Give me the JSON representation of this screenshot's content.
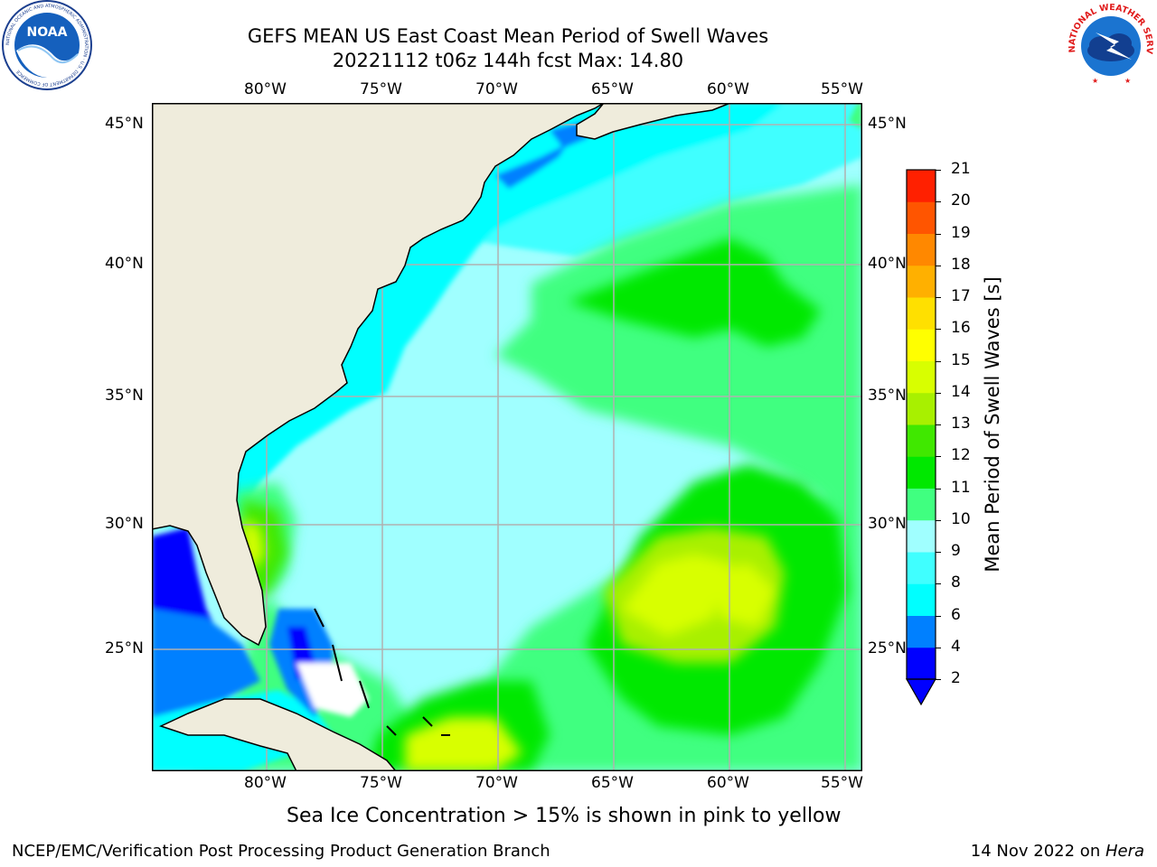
{
  "header": {
    "title_line1": "GEFS MEAN US East Coast Mean Period of Swell Waves",
    "title_line2": "20221112 t06z 144h fcst   Max: 14.80"
  },
  "logos": {
    "noaa_text": "NOAA",
    "noaa_ring_text": "NATIONAL OCEANIC AND ATMOSPHERIC ADMINISTRATION · U.S. DEPARTMENT OF COMMERCE",
    "nws_ring_text": "NATIONAL WEATHER SERVICE"
  },
  "map": {
    "lon_ticks": [
      "80°W",
      "75°W",
      "70°W",
      "65°W",
      "60°W",
      "55°W"
    ],
    "lat_ticks": [
      "45°N",
      "40°N",
      "35°N",
      "30°N",
      "25°N"
    ],
    "extent": {
      "lon_min": -85,
      "lon_max": -54.2,
      "lat_min": 20.5,
      "lat_max": 46
    },
    "colors": {
      "land": "#efecdc",
      "grid": "#b0b0b0",
      "coast": "#000000"
    }
  },
  "colorbar": {
    "label": "Mean Period of Swell Waves [s]",
    "ticks": [
      "2",
      "4",
      "6",
      "8",
      "9",
      "10",
      "11",
      "12",
      "13",
      "14",
      "15",
      "16",
      "17",
      "18",
      "19",
      "20",
      "21"
    ],
    "extend": "min",
    "colors": [
      "#0000ff",
      "#0080ff",
      "#00ffff",
      "#40ffff",
      "#a0ffff",
      "#40ff80",
      "#00e800",
      "#40e800",
      "#a8f000",
      "#d8ff00",
      "#ffff00",
      "#ffe000",
      "#ffb000",
      "#ff8800",
      "#ff5500",
      "#ff2000"
    ]
  },
  "caption": "Sea Ice Concentration > 15% is shown in pink to yellow",
  "footer": {
    "left": "NCEP/EMC/Verification Post Processing Product Generation Branch",
    "right_prefix": "14 Nov 2022 on ",
    "right_host": "Hera"
  }
}
